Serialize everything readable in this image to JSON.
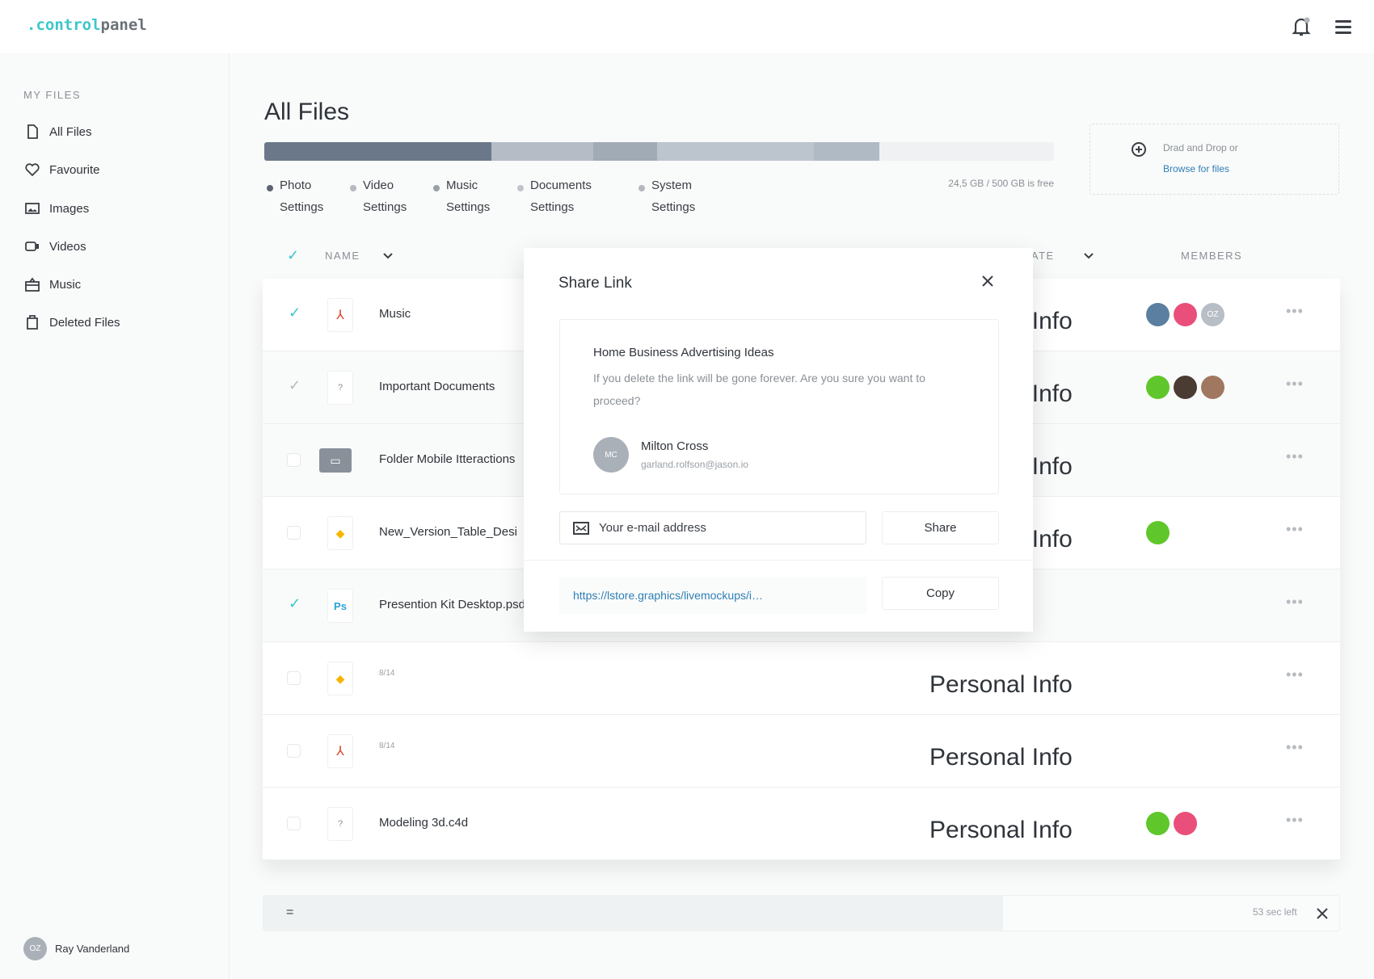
{
  "header": {
    "logo_prefix": ".control",
    "logo_suffix": "panel",
    "icons": [
      "bell-icon",
      "menu-icon"
    ]
  },
  "sidebar": {
    "section": "MY FILES",
    "items": [
      {
        "label": "All Files",
        "icon": "file-icon"
      },
      {
        "label": "Favourite",
        "icon": "heart-icon"
      },
      {
        "label": "Images",
        "icon": "image-icon"
      },
      {
        "label": "Videos",
        "icon": "video-icon"
      },
      {
        "label": "Music",
        "icon": "music-icon"
      },
      {
        "label": "Deleted Files",
        "icon": "trash-icon"
      }
    ],
    "user": {
      "initials": "OZ",
      "name": "Ray Vanderland"
    }
  },
  "main": {
    "title": "All Files",
    "storage_text": "24,5 GB / 500 GB is free",
    "storage": [
      {
        "label1": "Photo",
        "label2": "Settings",
        "percent": 28.8,
        "color": "#6b7889",
        "dot": "#5c6470"
      },
      {
        "label1": "Video",
        "label2": "Settings",
        "percent": 12.9,
        "color": "#b5bcc6",
        "dot": "#b5bac1"
      },
      {
        "label1": "Music",
        "label2": "Settings",
        "percent": 8.0,
        "color": "#a1abb6",
        "dot": "#9aa0a7"
      },
      {
        "label1": "Documents",
        "label2": "Settings",
        "percent": 19.9,
        "color": "#bcc4cd",
        "dot": "#c0c5cb"
      },
      {
        "label1": "System",
        "label2": "Settings",
        "percent": 8.3,
        "color": "#b0bac5",
        "dot": "#b3b8be"
      }
    ],
    "upload": {
      "text": "Drad and Drop or",
      "link": "Browse for files"
    },
    "columns": {
      "name": "NAME",
      "date": "DATE",
      "members": "MEMBERS"
    },
    "rows": [
      {
        "name": "Music",
        "type": "pdf",
        "checked": true,
        "info": "Personal Info",
        "members": [
          "photo",
          "pink",
          "OZ"
        ]
      },
      {
        "name": "Important Documents",
        "type": "unknown",
        "checked": "partial",
        "info": "Personal Info",
        "members": [
          "green",
          "dark",
          "tan"
        ]
      },
      {
        "name": "Folder Mobile Itteractions",
        "type": "folder",
        "checked": false,
        "info": "Personal Info",
        "members": []
      },
      {
        "name": "New_Version_Table_Desi",
        "type": "sketch",
        "checked": false,
        "info": "Personal Info",
        "members": [
          "green"
        ]
      },
      {
        "name": "Presention Kit Desktop.psd",
        "type": "psd",
        "checked": true,
        "info": "",
        "members": []
      },
      {
        "date": "8/14",
        "type": "sketch",
        "checked": false,
        "info": "Personal Info",
        "members": []
      },
      {
        "date": "8/14",
        "type": "pdf",
        "checked": false,
        "info": "Personal Info",
        "members": []
      },
      {
        "name": "Modeling 3d.c4d",
        "type": "unknown",
        "checked": false,
        "info": "Personal Info",
        "members": [
          "green",
          "pink"
        ]
      }
    ],
    "upload_progress": {
      "time_left": "53 sec left",
      "handle": "="
    }
  },
  "modal": {
    "title": "Share Link",
    "card_title": "Home Business Advertising Ideas",
    "card_text": "If you delete the link will be gone forever. Are you sure you want to proceed?",
    "user_initials": "MC",
    "user_name": "Milton Cross",
    "user_email": "garland.rolfson@jason.io",
    "email_placeholder": "Your e-mail address",
    "share": "Share",
    "link": "https://lstore.graphics/livemockups/i…",
    "copy": "Copy"
  },
  "colors": {
    "accent": "#3cc7c9",
    "link": "#2f7fb5"
  }
}
